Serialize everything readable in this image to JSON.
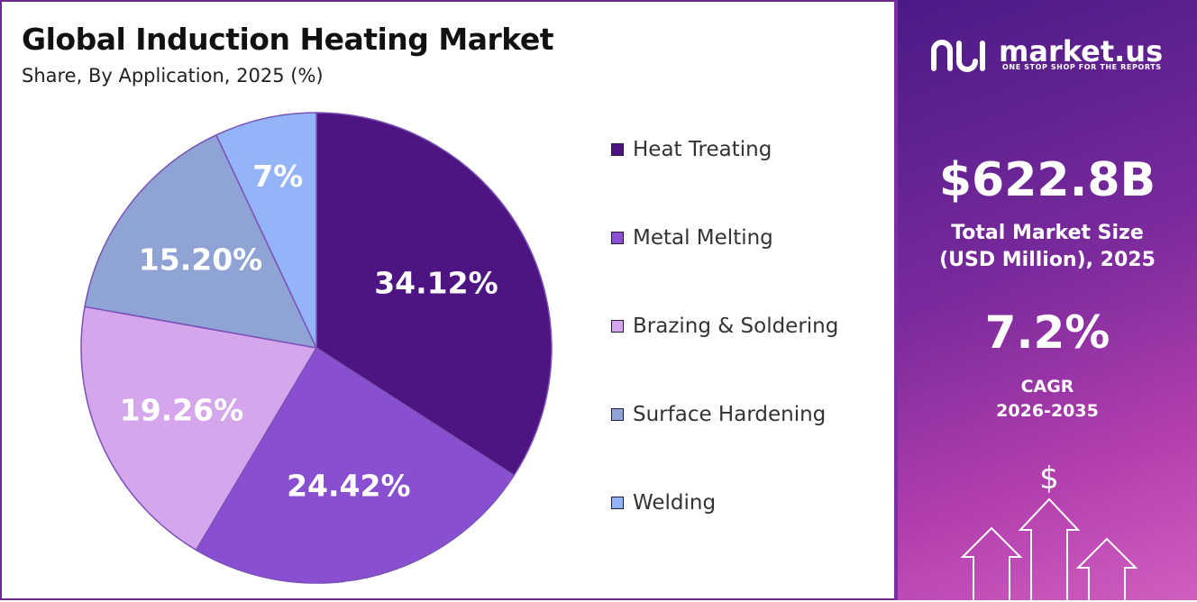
{
  "header": {
    "title": "Global Induction Heating Market",
    "subtitle": "Share, By Application, 2025 (%)"
  },
  "chart_data": {
    "type": "pie",
    "categories": [
      "Heat Treating",
      "Metal Melting",
      "Brazing & Soldering",
      "Surface Hardening",
      "Welding"
    ],
    "values": [
      34.12,
      24.42,
      19.26,
      15.2,
      7
    ],
    "value_labels": [
      "34.12%",
      "24.42%",
      "19.26%",
      "15.20%",
      "7%"
    ],
    "colors": [
      "#4e1481",
      "#8a4fd1",
      "#d5a6ec",
      "#8fa3d5",
      "#94b4fa"
    ],
    "legend_position": "right",
    "start_angle_deg": 0,
    "direction": "clockwise"
  },
  "sidebar": {
    "brand_name": "market.us",
    "brand_tagline": "ONE STOP SHOP FOR THE REPORTS",
    "market_size_value": "$622.8B",
    "market_size_label_line1": "Total Market Size",
    "market_size_label_line2": "(USD Million), 2025",
    "cagr_value": "7.2%",
    "cagr_label_line1": "CAGR",
    "cagr_label_line2": "2026-2035",
    "currency_symbol": "$"
  },
  "colors": {
    "frame": "#6b2a8c",
    "sidebar_top": "#4a1a86",
    "sidebar_bottom": "#d05fbf"
  }
}
